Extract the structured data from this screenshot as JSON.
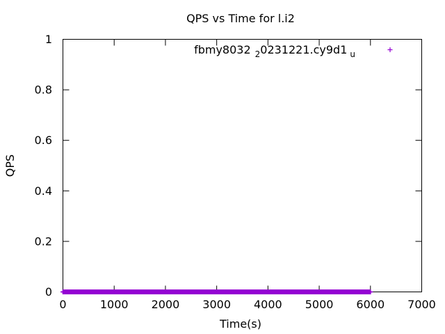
{
  "chart_data": {
    "type": "scatter",
    "title": "QPS vs Time for l.i2",
    "xlabel": "Time(s)",
    "ylabel": "QPS",
    "xlim": [
      0,
      7000
    ],
    "ylim": [
      0,
      1
    ],
    "x_ticks": [
      0,
      1000,
      2000,
      3000,
      4000,
      5000,
      6000,
      7000
    ],
    "y_ticks": [
      0,
      0.2,
      0.4,
      0.6,
      0.8,
      1
    ],
    "x_tick_labels": [
      "0",
      "1000",
      "2000",
      "3000",
      "4000",
      "5000",
      "6000",
      "7000"
    ],
    "y_tick_labels": [
      "0",
      "0.2",
      "0.4",
      "0.6",
      "0.8",
      "1"
    ],
    "grid": false,
    "legend_position": "top-right",
    "series": [
      {
        "name": "fbmy8032_20231221.cy9d1_u",
        "legend_parts": [
          "fbmy8032",
          "2",
          "0231221.cy9d1",
          "u"
        ],
        "color": "#9400d3",
        "marker": "plus",
        "x_start": 0,
        "x_end": 6000,
        "x_step": 10,
        "y_value": 0
      }
    ]
  }
}
